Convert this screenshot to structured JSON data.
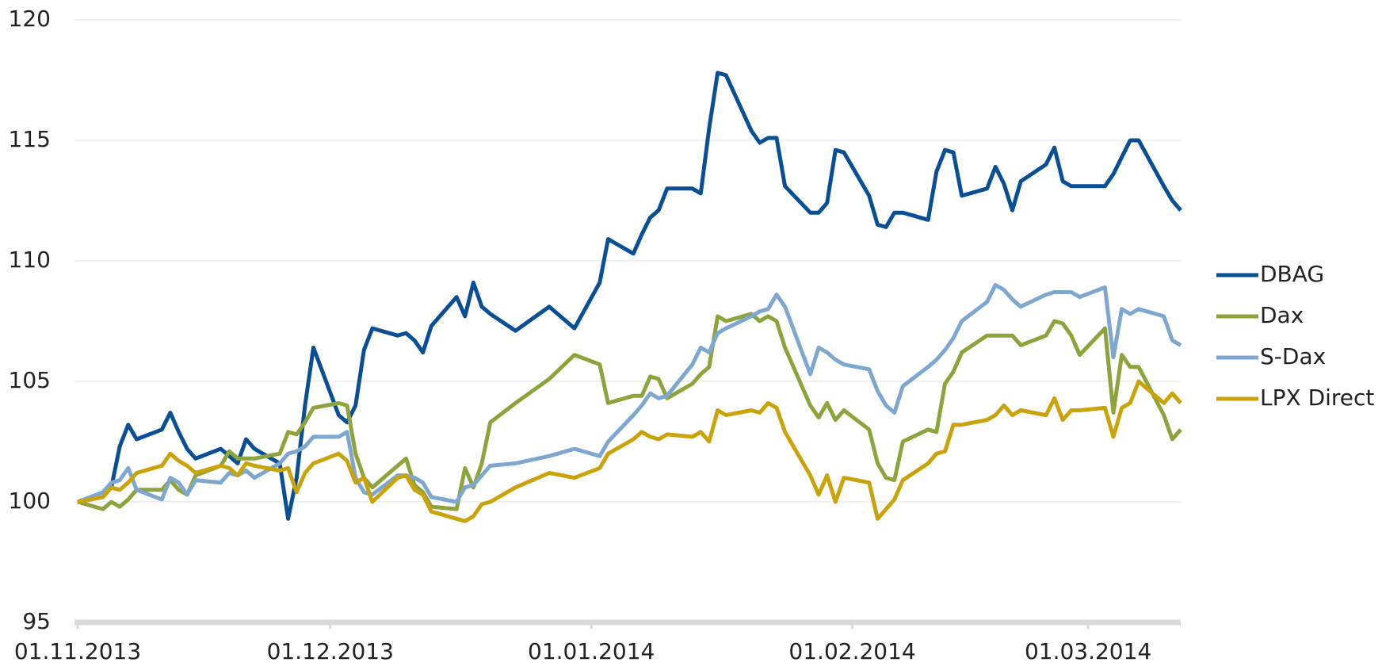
{
  "chart_data": {
    "type": "line",
    "x": [
      "01.11.2013",
      "04.11.2013",
      "05.11.2013",
      "06.11.2013",
      "07.11.2013",
      "08.11.2013",
      "11.11.2013",
      "12.11.2013",
      "13.11.2013",
      "14.11.2013",
      "15.11.2013",
      "18.11.2013",
      "19.11.2013",
      "20.11.2013",
      "21.11.2013",
      "22.11.2013",
      "25.11.2013",
      "26.11.2013",
      "27.11.2013",
      "28.11.2013",
      "29.11.2013",
      "02.12.2013",
      "03.12.2013",
      "04.12.2013",
      "05.12.2013",
      "06.12.2013",
      "09.12.2013",
      "10.12.2013",
      "11.12.2013",
      "12.12.2013",
      "13.12.2013",
      "16.12.2013",
      "17.12.2013",
      "18.12.2013",
      "19.12.2013",
      "20.12.2013",
      "23.12.2013",
      "27.12.2013",
      "30.12.2013",
      "02.01.2014",
      "03.01.2014",
      "06.01.2014",
      "07.01.2014",
      "08.01.2014",
      "09.01.2014",
      "10.01.2014",
      "13.01.2014",
      "14.01.2014",
      "15.01.2014",
      "16.01.2014",
      "17.01.2014",
      "20.01.2014",
      "21.01.2014",
      "22.01.2014",
      "23.01.2014",
      "24.01.2014",
      "27.01.2014",
      "28.01.2014",
      "29.01.2014",
      "30.01.2014",
      "31.01.2014",
      "03.02.2014",
      "04.02.2014",
      "05.02.2014",
      "06.02.2014",
      "07.02.2014",
      "10.02.2014",
      "11.02.2014",
      "12.02.2014",
      "13.02.2014",
      "14.02.2014",
      "17.02.2014",
      "18.02.2014",
      "19.02.2014",
      "20.02.2014",
      "21.02.2014",
      "24.02.2014",
      "25.02.2014",
      "26.02.2014",
      "27.02.2014",
      "28.02.2014",
      "03.03.2014",
      "04.03.2014",
      "05.03.2014",
      "06.03.2014",
      "07.03.2014",
      "10.03.2014",
      "11.03.2014",
      "12.03.2014"
    ],
    "series": [
      {
        "name": "DBAG",
        "color": "#0a4f96",
        "values": [
          100,
          100.2,
          100.6,
          102.3,
          103.2,
          102.6,
          103.0,
          103.7,
          102.9,
          102.2,
          101.8,
          102.2,
          101.9,
          101.6,
          102.6,
          102.2,
          101.6,
          99.3,
          101.0,
          104.0,
          106.4,
          103.6,
          103.3,
          104.0,
          106.3,
          107.2,
          106.9,
          107.0,
          106.7,
          106.2,
          107.3,
          108.5,
          107.7,
          109.1,
          108.1,
          107.8,
          107.1,
          108.1,
          107.2,
          109.1,
          110.9,
          110.3,
          111.1,
          111.8,
          112.1,
          113.0,
          113.0,
          112.8,
          115.5,
          117.8,
          117.7,
          115.4,
          114.9,
          115.1,
          115.1,
          113.1,
          112.0,
          112.0,
          112.4,
          114.6,
          114.5,
          112.7,
          111.5,
          111.4,
          112.0,
          112.0,
          111.7,
          113.7,
          114.6,
          114.5,
          112.7,
          113.0,
          113.9,
          113.2,
          112.1,
          113.3,
          114.0,
          114.7,
          113.3,
          113.1,
          113.1,
          113.1,
          113.6,
          114.3,
          115.0,
          115.0,
          113.1,
          112.5,
          112.1
        ]
      },
      {
        "name": "Dax",
        "color": "#8da33c",
        "values": [
          100,
          99.7,
          100.0,
          99.8,
          100.1,
          100.5,
          100.5,
          100.9,
          100.5,
          100.3,
          101.1,
          101.5,
          102.1,
          101.8,
          101.8,
          101.8,
          102.0,
          102.9,
          102.8,
          103.3,
          103.9,
          104.1,
          104.0,
          102.0,
          101.0,
          100.6,
          101.5,
          101.8,
          100.7,
          100.4,
          99.8,
          99.7,
          101.4,
          100.6,
          101.6,
          103.3,
          104.1,
          105.1,
          106.1,
          105.7,
          104.1,
          104.4,
          104.4,
          105.2,
          105.1,
          104.3,
          104.9,
          105.3,
          105.6,
          107.7,
          107.5,
          107.8,
          107.5,
          107.7,
          107.5,
          106.4,
          104.0,
          103.5,
          104.1,
          103.4,
          103.8,
          103.0,
          101.6,
          101.0,
          100.9,
          102.5,
          103.0,
          102.9,
          104.9,
          105.4,
          106.2,
          106.9,
          106.9,
          106.9,
          106.9,
          106.5,
          106.9,
          107.5,
          107.4,
          106.9,
          106.1,
          107.2,
          103.7,
          106.1,
          105.6,
          105.6,
          103.6,
          102.6,
          103.0
        ]
      },
      {
        "name": "S-Dax",
        "color": "#7fa6cf",
        "values": [
          100,
          100.4,
          100.8,
          100.9,
          101.4,
          100.5,
          100.1,
          101.0,
          100.8,
          100.3,
          100.9,
          100.8,
          101.2,
          101.1,
          101.3,
          101.0,
          101.6,
          102.0,
          102.1,
          102.3,
          102.7,
          102.7,
          102.9,
          101.0,
          100.4,
          100.3,
          101.1,
          101.1,
          101.0,
          100.8,
          100.2,
          100.0,
          100.6,
          100.7,
          101.1,
          101.5,
          101.6,
          101.9,
          102.2,
          101.9,
          102.5,
          103.6,
          104.0,
          104.5,
          104.3,
          104.4,
          105.7,
          106.4,
          106.2,
          107.0,
          107.2,
          107.7,
          107.9,
          108.0,
          108.6,
          108.1,
          105.3,
          106.4,
          106.2,
          105.9,
          105.7,
          105.5,
          104.6,
          104.0,
          103.7,
          104.8,
          105.6,
          105.9,
          106.3,
          106.8,
          107.5,
          108.3,
          109.0,
          108.8,
          108.4,
          108.1,
          108.6,
          108.7,
          108.7,
          108.7,
          108.5,
          108.9,
          106.0,
          108.0,
          107.8,
          108.0,
          107.7,
          106.7,
          106.5
        ]
      },
      {
        "name": "LPX Direct",
        "color": "#c9a30a",
        "values": [
          100,
          100.2,
          100.6,
          100.5,
          100.8,
          101.2,
          101.5,
          102.0,
          101.7,
          101.5,
          101.2,
          101.5,
          101.4,
          101.1,
          101.6,
          101.5,
          101.3,
          101.4,
          100.4,
          101.2,
          101.6,
          102.0,
          101.7,
          100.8,
          101.0,
          100.0,
          101.0,
          101.1,
          100.5,
          100.3,
          99.6,
          99.3,
          99.2,
          99.4,
          99.9,
          100.0,
          100.6,
          101.2,
          101.0,
          101.4,
          102.0,
          102.6,
          102.9,
          102.7,
          102.6,
          102.8,
          102.7,
          102.9,
          102.5,
          103.8,
          103.6,
          103.8,
          103.7,
          104.1,
          103.9,
          102.9,
          101.1,
          100.3,
          101.1,
          100.0,
          101.0,
          100.8,
          99.3,
          99.7,
          100.1,
          100.9,
          101.6,
          102.0,
          102.1,
          103.2,
          103.2,
          103.4,
          103.6,
          104.0,
          103.6,
          103.8,
          103.6,
          104.3,
          103.4,
          103.8,
          103.8,
          103.9,
          102.7,
          103.9,
          104.1,
          105.0,
          104.1,
          104.5,
          104.1
        ]
      }
    ],
    "xlim": [
      "01.11.2013",
      "12.03.2014"
    ],
    "xticks": [
      "01.11.2013",
      "01.12.2013",
      "01.01.2014",
      "01.02.2014",
      "01.03.2014"
    ],
    "ylim": [
      95,
      120
    ],
    "yticks": [
      95,
      100,
      105,
      110,
      115,
      120
    ],
    "grid": true,
    "legend": "right"
  }
}
